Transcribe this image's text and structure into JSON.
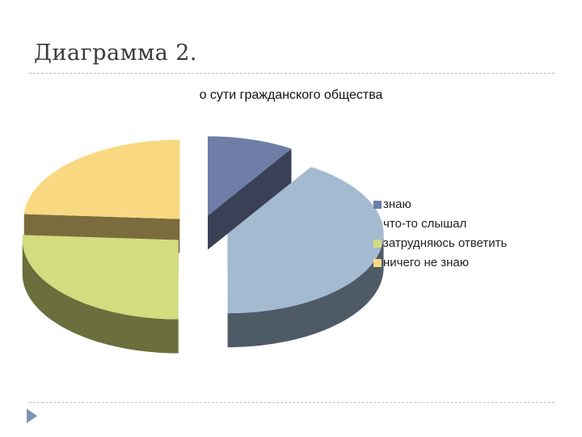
{
  "slide": {
    "title": "Диаграмма 2."
  },
  "chart_data": {
    "type": "pie",
    "title": "о сути гражданского общества",
    "categories": [
      "знаю",
      "что-то слышал",
      "затрудняюсь ответить",
      "ничего не знаю"
    ],
    "values": [
      9,
      41,
      26,
      24
    ],
    "colors": [
      "#6e7ea6",
      "#a3bad1",
      "#d3dc7e",
      "#f8d982"
    ],
    "side_colors": [
      "#3a4157",
      "#4f5a67",
      "#6a6f3d",
      "#7b6c3e"
    ],
    "legend_position": "right"
  },
  "icons": {
    "nav": "triangle-arrow-icon"
  }
}
